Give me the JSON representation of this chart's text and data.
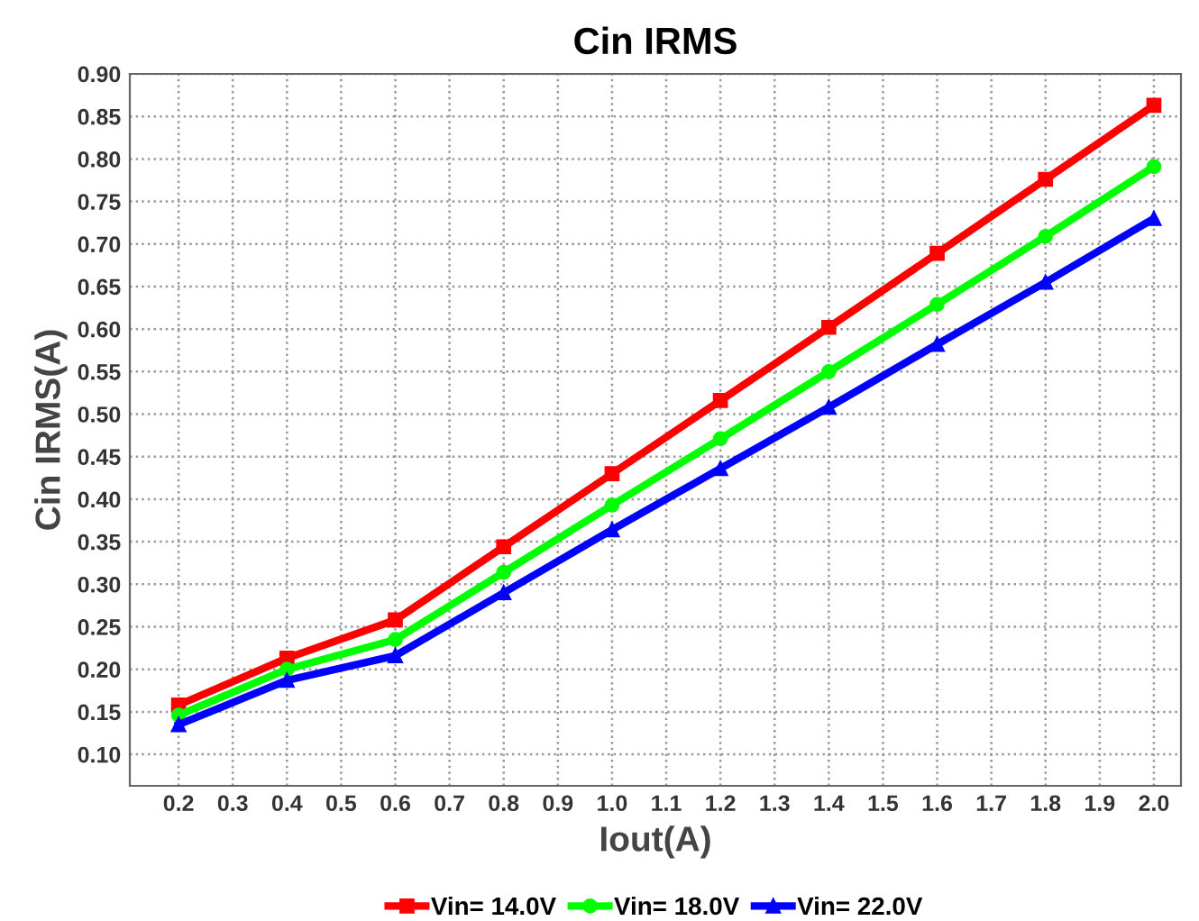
{
  "chart_data": {
    "type": "line",
    "title": "Cin IRMS",
    "xlabel": "Iout(A)",
    "ylabel": "Cin IRMS(A)",
    "x": [
      0.2,
      0.4,
      0.6,
      0.8,
      1.0,
      1.2,
      1.4,
      1.6,
      1.8,
      2.0
    ],
    "series": [
      {
        "name": "Vin= 14.0V",
        "color": "#ff0000",
        "marker": "square",
        "values": [
          0.158,
          0.213,
          0.258,
          0.344,
          0.43,
          0.516,
          0.602,
          0.689,
          0.776,
          0.863
        ]
      },
      {
        "name": "Vin= 18.0V",
        "color": "#00ff00",
        "marker": "circle",
        "values": [
          0.146,
          0.2,
          0.235,
          0.314,
          0.393,
          0.471,
          0.55,
          0.629,
          0.709,
          0.791
        ]
      },
      {
        "name": "Vin= 22.0V",
        "color": "#0000ff",
        "marker": "triangle",
        "values": [
          0.135,
          0.187,
          0.216,
          0.29,
          0.364,
          0.436,
          0.508,
          0.582,
          0.655,
          0.73
        ]
      }
    ],
    "xlim": [
      0.11,
      2.05
    ],
    "ylim": [
      0.063,
      0.9
    ],
    "xticks": [
      0.2,
      0.3,
      0.4,
      0.5,
      0.6,
      0.7,
      0.8,
      0.9,
      {
        "value": 1.0,
        "label": "1.0"
      },
      1.1,
      1.2,
      1.3,
      1.4,
      1.5,
      1.6,
      1.7,
      1.8,
      1.9,
      {
        "value": 2.0,
        "label": "2.0"
      }
    ],
    "yticks": [
      {
        "value": 0.1,
        "label": "0.10"
      },
      {
        "value": 0.15,
        "label": "0.15"
      },
      {
        "value": 0.2,
        "label": "0.20"
      },
      {
        "value": 0.25,
        "label": "0.25"
      },
      {
        "value": 0.3,
        "label": "0.30"
      },
      {
        "value": 0.35,
        "label": "0.35"
      },
      {
        "value": 0.4,
        "label": "0.40"
      },
      {
        "value": 0.45,
        "label": "0.45"
      },
      {
        "value": 0.5,
        "label": "0.50"
      },
      {
        "value": 0.55,
        "label": "0.55"
      },
      {
        "value": 0.6,
        "label": "0.60"
      },
      {
        "value": 0.65,
        "label": "0.65"
      },
      {
        "value": 0.7,
        "label": "0.70"
      },
      {
        "value": 0.75,
        "label": "0.75"
      },
      {
        "value": 0.8,
        "label": "0.80"
      },
      {
        "value": 0.85,
        "label": "0.85"
      },
      {
        "value": 0.9,
        "label": "0.90"
      }
    ],
    "grid": true,
    "legend": "bottom",
    "line_style": "solid"
  }
}
